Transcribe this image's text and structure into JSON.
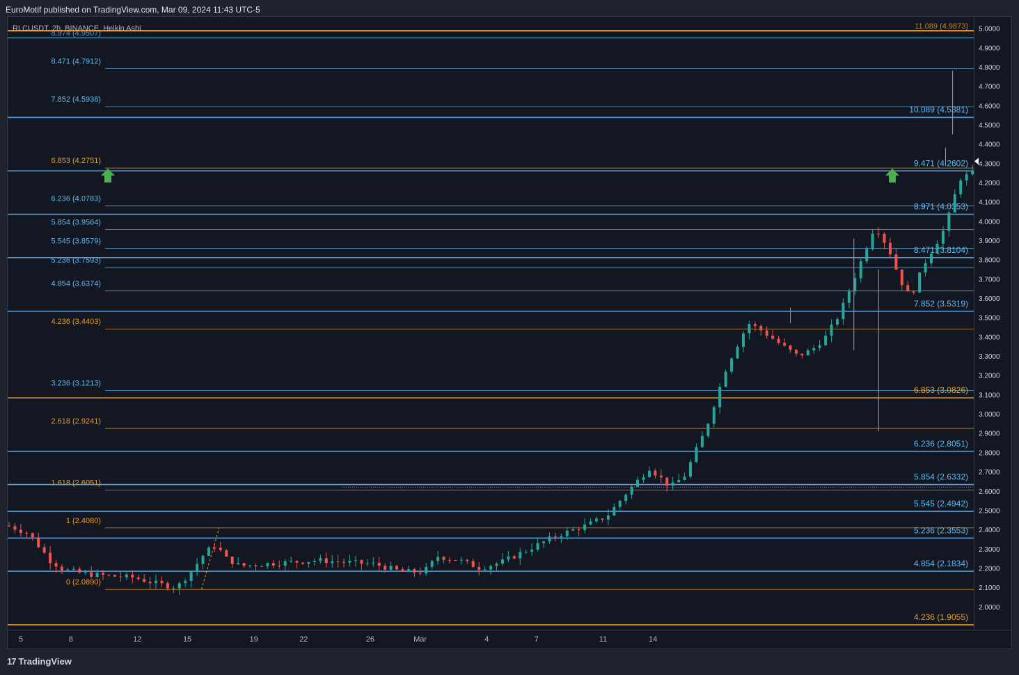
{
  "header": {
    "publisher": "EuroMotif published on TradingView.com, Mar 09, 2024 11:43 UTC-5",
    "symbol": "RLCUSDT, 2h, BINANCE, Heikin Ashi"
  },
  "footer": {
    "logo_mark": "17",
    "brand": "TradingView"
  },
  "colors": {
    "background": "#131722",
    "fib_orange": "#f09a1f",
    "fib_blue": "#5fb8ef",
    "fib_blue_strong": "#5ea7e6",
    "up_candle": "#26a69a",
    "down_candle": "#ef5350",
    "arrow": "#4caf50"
  },
  "chart_data": {
    "type": "candlestick",
    "style": "Heikin Ashi",
    "x_labels": [
      "5",
      "8",
      "12",
      "15",
      "19",
      "22",
      "26",
      "Mar",
      "4",
      "7",
      "11",
      "14"
    ],
    "y_ticks": [
      "5.0000",
      "4.9000",
      "4.8000",
      "4.7000",
      "4.6000",
      "4.5000",
      "4.4000",
      "4.3000",
      "4.2000",
      "4.1000",
      "4.0000",
      "3.9000",
      "3.8000",
      "3.7000",
      "3.6000",
      "3.5000",
      "3.4000",
      "3.3000",
      "3.2000",
      "3.1000",
      "3.0000",
      "2.9000",
      "2.8000",
      "2.7000",
      "2.6000",
      "2.5000",
      "2.4000",
      "2.3000",
      "2.2000",
      "2.1000",
      "2.0000"
    ],
    "ylim": [
      1.88,
      5.06
    ],
    "xlim": [
      4.2,
      17.9
    ],
    "left_fib_levels": [
      {
        "label": "8.471 (4.7912)",
        "price": 4.7912,
        "color": "blue"
      },
      {
        "label": "7.852 (4.5938)",
        "price": 4.5938,
        "color": "blue"
      },
      {
        "label": "6.853 (4.2751)",
        "price": 4.2751,
        "color": "orange"
      },
      {
        "label": "6.236 (4.0783)",
        "price": 4.0783,
        "color": "blue"
      },
      {
        "label": "5.854 (3.9564)",
        "price": 3.9564,
        "color": "blue"
      },
      {
        "label": "5.545 (3.8579)",
        "price": 3.8579,
        "color": "blue"
      },
      {
        "label": "5.236 (3.7593)",
        "price": 3.7593,
        "color": "blue"
      },
      {
        "label": "4.854 (3.6374)",
        "price": 3.6374,
        "color": "blue"
      },
      {
        "label": "4.236 (3.4403)",
        "price": 3.4403,
        "color": "orange"
      },
      {
        "label": "3.236 (3.1213)",
        "price": 3.1213,
        "color": "blue"
      },
      {
        "label": "2.618 (2.9241)",
        "price": 2.9241,
        "color": "orange"
      },
      {
        "label": "1.618 (2.6051)",
        "price": 2.6051,
        "color": "orange"
      },
      {
        "label": "1 (2.4080)",
        "price": 2.408,
        "color": "orange"
      },
      {
        "label": "0 (2.0890)",
        "price": 2.089,
        "color": "orange"
      }
    ],
    "right_fib_levels": [
      {
        "label": "10.089 (4.5381)",
        "price": 4.5381,
        "color": "blue"
      },
      {
        "label": "9.471 (4.2602)",
        "price": 4.2602,
        "color": "blue"
      },
      {
        "label": "8.971 (4.0353)",
        "price": 4.0353,
        "color": "blue"
      },
      {
        "label": "8.471 (3.8104)",
        "price": 3.8104,
        "color": "blue"
      },
      {
        "label": "7.852 (3.5319)",
        "price": 3.5319,
        "color": "blue"
      },
      {
        "label": "6.853 (3.0826)",
        "price": 3.0826,
        "color": "orange"
      },
      {
        "label": "6.236 (2.8051)",
        "price": 2.8051,
        "color": "blue"
      },
      {
        "label": "5.854 (2.6332)",
        "price": 2.6332,
        "color": "blue"
      },
      {
        "label": "5.545 (2.4942)",
        "price": 2.4942,
        "color": "blue"
      },
      {
        "label": "5.236 (2.3553)",
        "price": 2.3553,
        "color": "blue"
      },
      {
        "label": "4.854 (2.1834)",
        "price": 2.1834,
        "color": "blue"
      },
      {
        "label": "4.236 (1.9055)",
        "price": 1.9055,
        "color": "orange"
      }
    ],
    "top_partial_levels": [
      {
        "label": "8.974 (4.9507)",
        "price": 4.9507,
        "color": "blue"
      },
      {
        "label": "11.089 (4.9873)",
        "price": 4.9873,
        "color": "orange"
      }
    ],
    "last_price": 4.31,
    "price_path": [
      [
        4.2,
        2.42
      ],
      [
        4.5,
        2.38
      ],
      [
        4.8,
        2.24
      ],
      [
        5.0,
        2.19
      ],
      [
        5.3,
        2.17
      ],
      [
        5.6,
        2.16
      ],
      [
        6.0,
        2.15
      ],
      [
        6.3,
        2.12
      ],
      [
        6.6,
        2.1
      ],
      [
        6.8,
        2.18
      ],
      [
        7.0,
        2.28
      ],
      [
        7.15,
        2.32
      ],
      [
        7.3,
        2.25
      ],
      [
        7.5,
        2.21
      ],
      [
        7.8,
        2.22
      ],
      [
        8.2,
        2.23
      ],
      [
        8.6,
        2.24
      ],
      [
        9.0,
        2.23
      ],
      [
        9.4,
        2.22
      ],
      [
        9.8,
        2.18
      ],
      [
        10.1,
        2.18
      ],
      [
        10.3,
        2.26
      ],
      [
        10.6,
        2.24
      ],
      [
        10.9,
        2.2
      ],
      [
        11.2,
        2.23
      ],
      [
        11.6,
        2.3
      ],
      [
        12.0,
        2.37
      ],
      [
        12.4,
        2.42
      ],
      [
        12.7,
        2.47
      ],
      [
        13.0,
        2.6
      ],
      [
        13.3,
        2.72
      ],
      [
        13.6,
        2.62
      ],
      [
        13.8,
        2.68
      ],
      [
        14.1,
        2.92
      ],
      [
        14.4,
        3.25
      ],
      [
        14.7,
        3.47
      ],
      [
        14.9,
        3.43
      ],
      [
        15.2,
        3.35
      ],
      [
        15.4,
        3.3
      ],
      [
        15.6,
        3.33
      ],
      [
        15.8,
        3.4
      ],
      [
        16.0,
        3.52
      ],
      [
        16.3,
        3.79
      ],
      [
        16.5,
        3.98
      ],
      [
        16.7,
        3.85
      ],
      [
        16.85,
        3.7
      ],
      [
        17.0,
        3.6
      ],
      [
        17.2,
        3.78
      ],
      [
        17.5,
        3.97
      ],
      [
        17.7,
        4.22
      ],
      [
        17.9,
        4.25
      ]
    ]
  }
}
